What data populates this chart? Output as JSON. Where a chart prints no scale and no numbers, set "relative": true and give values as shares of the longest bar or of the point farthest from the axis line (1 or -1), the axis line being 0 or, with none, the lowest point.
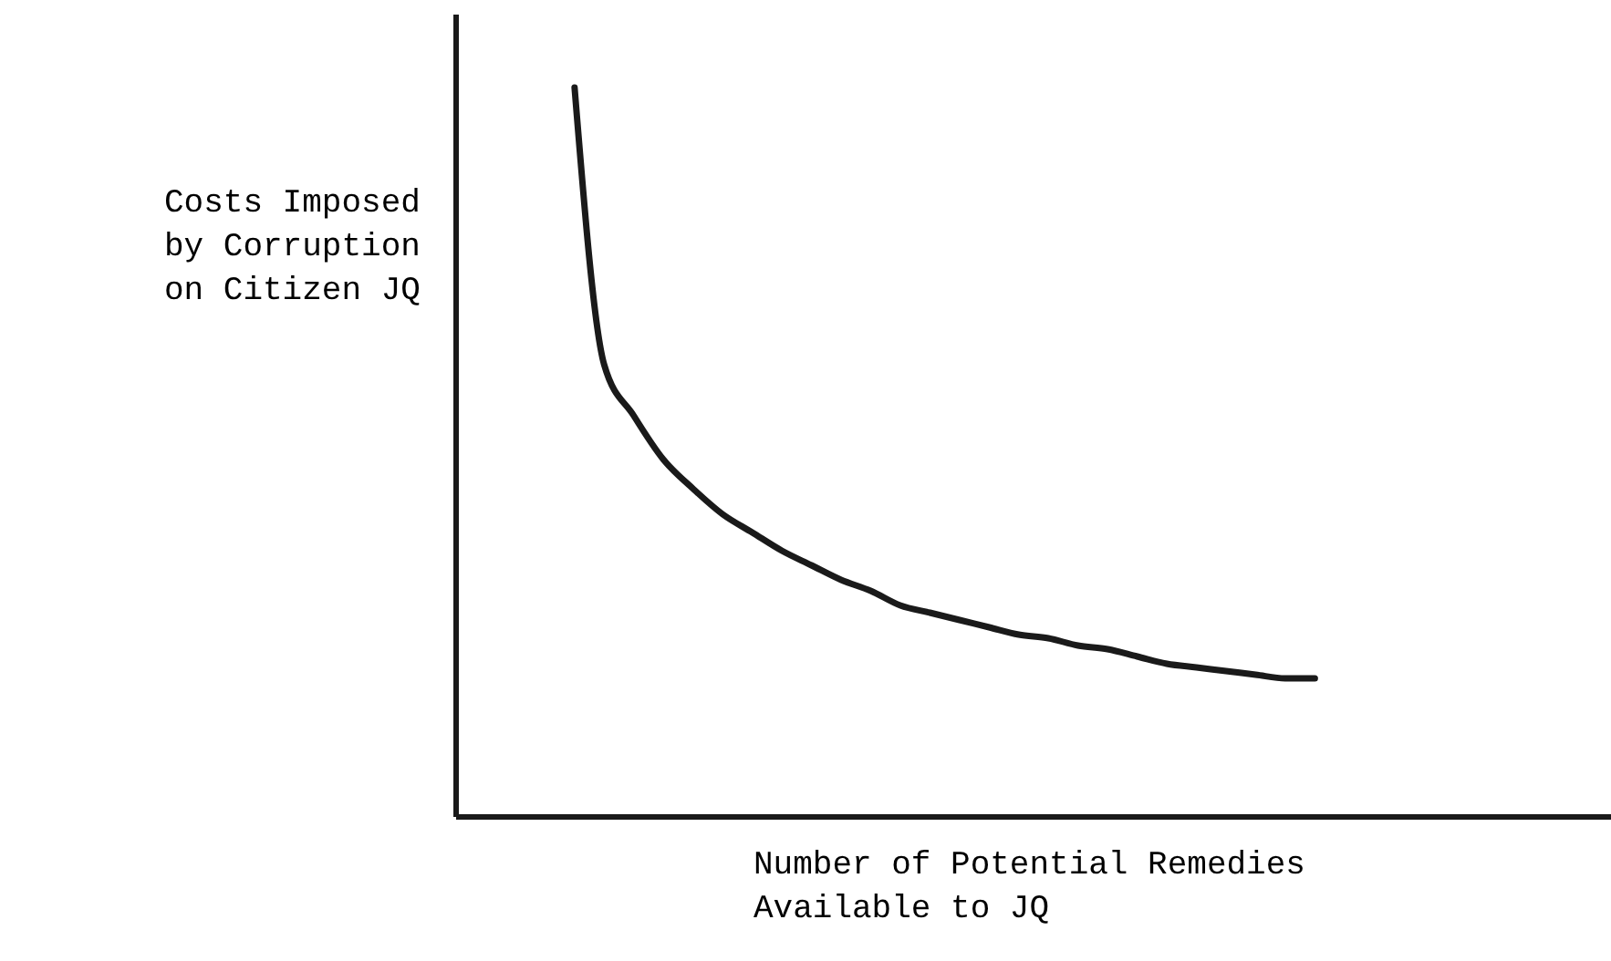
{
  "chart_data": {
    "type": "line",
    "relative": true,
    "xlabel": "Number of Potential Remedies Available to JQ",
    "ylabel": "Costs Imposed by Corruption on Citizen JQ",
    "color": "#1a1a1a",
    "categories": [
      null,
      null,
      null,
      null,
      null,
      null,
      null,
      null,
      null,
      null,
      null,
      null,
      null,
      null,
      null,
      null,
      null,
      null,
      null,
      null,
      null,
      null,
      null,
      null,
      null,
      null,
      null,
      null,
      null,
      null,
      null,
      null,
      null,
      null,
      null,
      null,
      null,
      null,
      null,
      null
    ],
    "values": [
      null,
      null,
      null,
      null,
      1.0,
      0.62,
      0.55,
      0.49,
      0.45,
      0.415,
      0.39,
      0.365,
      0.345,
      0.325,
      0.31,
      0.29,
      0.28,
      0.27,
      0.26,
      0.25,
      0.245,
      0.235,
      0.23,
      0.22,
      0.21,
      0.205,
      0.2,
      0.195,
      0.19,
      0.19,
      null,
      null,
      null,
      null,
      null,
      null,
      null,
      null,
      null,
      null
    ]
  }
}
